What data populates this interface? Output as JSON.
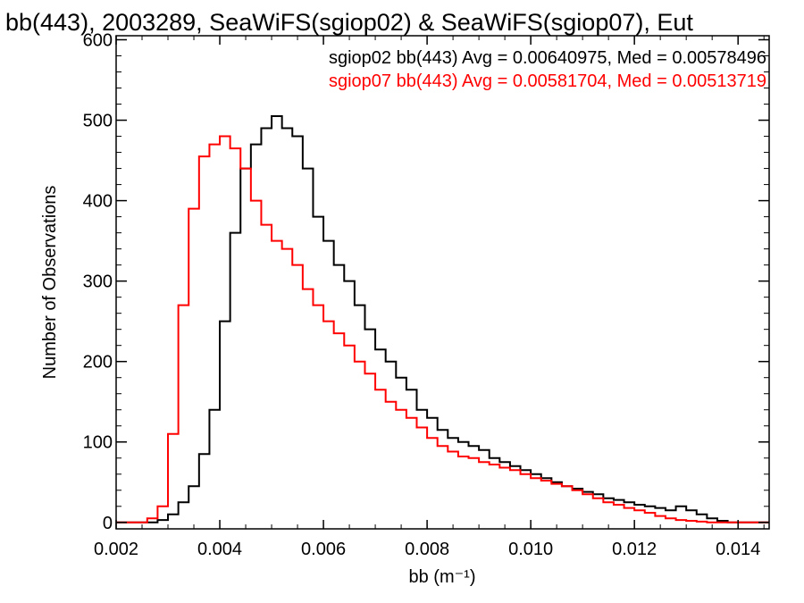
{
  "chart_data": {
    "type": "line",
    "title": "bb(443), 2003289, SeaWiFS(sgiop02) & SeaWiFS(sgiop07), Eut",
    "xlabel": "bb (m⁻¹)",
    "ylabel": "Number of Observations",
    "xlim": [
      0.002,
      0.0146
    ],
    "ylim": [
      -8,
      605
    ],
    "x_ticks": [
      "0.002",
      "0.004",
      "0.006",
      "0.008",
      "0.010",
      "0.012",
      "0.014"
    ],
    "x_tick_values": [
      0.002,
      0.004,
      0.006,
      0.008,
      0.01,
      0.012,
      0.014
    ],
    "y_ticks": [
      "0",
      "100",
      "200",
      "300",
      "400",
      "500",
      "600"
    ],
    "y_tick_values": [
      0,
      100,
      200,
      300,
      400,
      500,
      600
    ],
    "grid": false,
    "legend_position": "top-right",
    "series": [
      {
        "name": "sgiop02",
        "legend_text": "sgiop02 bb(443) Avg = 0.00640975, Med = 0.00578496",
        "color": "#000000",
        "x": [
          0.002,
          0.0026,
          0.0028,
          0.003,
          0.0032,
          0.0034,
          0.0036,
          0.0038,
          0.004,
          0.0042,
          0.0044,
          0.0046,
          0.0048,
          0.005,
          0.0052,
          0.0054,
          0.0056,
          0.0058,
          0.006,
          0.0062,
          0.0064,
          0.0066,
          0.0068,
          0.007,
          0.0072,
          0.0074,
          0.0076,
          0.0078,
          0.008,
          0.0082,
          0.0084,
          0.0086,
          0.0088,
          0.009,
          0.0092,
          0.0094,
          0.0096,
          0.0098,
          0.01,
          0.0102,
          0.0104,
          0.0106,
          0.0108,
          0.011,
          0.0112,
          0.0114,
          0.0116,
          0.0118,
          0.012,
          0.0122,
          0.0124,
          0.0126,
          0.0128,
          0.013,
          0.0132,
          0.0134,
          0.0136,
          0.0138,
          0.014,
          0.0146
        ],
        "values": [
          0,
          0,
          3,
          10,
          25,
          45,
          85,
          140,
          250,
          360,
          440,
          470,
          490,
          505,
          490,
          480,
          440,
          380,
          350,
          320,
          300,
          270,
          240,
          215,
          200,
          180,
          165,
          140,
          130,
          115,
          105,
          100,
          95,
          90,
          80,
          75,
          70,
          65,
          60,
          55,
          50,
          45,
          42,
          38,
          35,
          30,
          28,
          25,
          22,
          20,
          18,
          15,
          20,
          15,
          10,
          5,
          2,
          0,
          0,
          0
        ]
      },
      {
        "name": "sgiop07",
        "legend_text": "sgiop07 bb(443) Avg = 0.00581704, Med = 0.00513719",
        "color": "#ff0000",
        "x": [
          0.002,
          0.0026,
          0.0028,
          0.003,
          0.0032,
          0.0034,
          0.0036,
          0.0038,
          0.004,
          0.0042,
          0.0044,
          0.0046,
          0.0048,
          0.005,
          0.0052,
          0.0054,
          0.0056,
          0.0058,
          0.006,
          0.0062,
          0.0064,
          0.0066,
          0.0068,
          0.007,
          0.0072,
          0.0074,
          0.0076,
          0.0078,
          0.008,
          0.0082,
          0.0084,
          0.0086,
          0.0088,
          0.009,
          0.0092,
          0.0094,
          0.0096,
          0.0098,
          0.01,
          0.0102,
          0.0104,
          0.0106,
          0.0108,
          0.011,
          0.0112,
          0.0114,
          0.0116,
          0.0118,
          0.012,
          0.0122,
          0.0124,
          0.0126,
          0.0128,
          0.013,
          0.0132,
          0.0134,
          0.0136,
          0.0138,
          0.014,
          0.0146
        ],
        "values": [
          0,
          5,
          20,
          110,
          270,
          390,
          455,
          470,
          480,
          465,
          440,
          400,
          370,
          350,
          340,
          320,
          290,
          270,
          250,
          235,
          220,
          200,
          185,
          165,
          150,
          140,
          130,
          118,
          105,
          95,
          88,
          82,
          80,
          75,
          72,
          68,
          65,
          60,
          55,
          52,
          48,
          45,
          40,
          35,
          30,
          25,
          22,
          18,
          15,
          12,
          8,
          5,
          3,
          2,
          1,
          0,
          0,
          0,
          0,
          0
        ]
      }
    ]
  }
}
